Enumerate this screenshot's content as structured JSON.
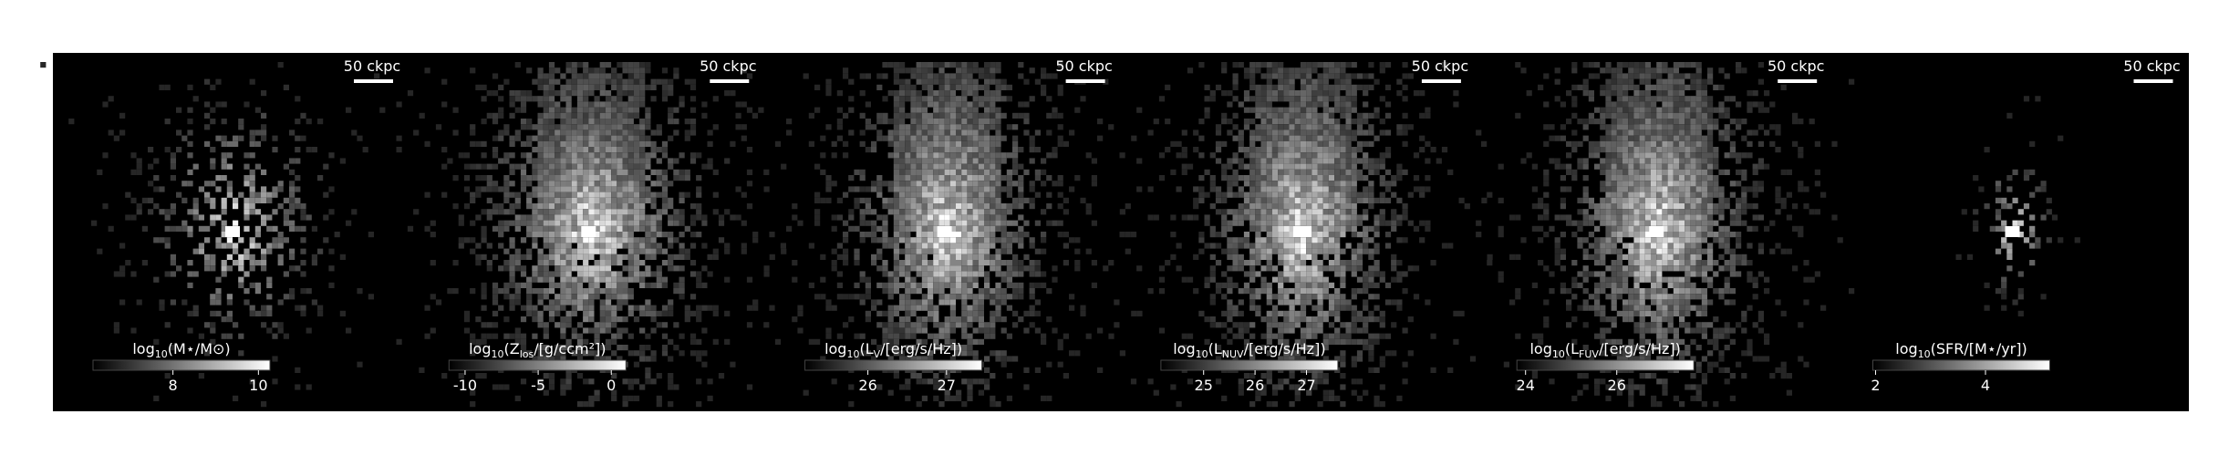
{
  "panels": [
    {
      "scale_bar": "50 ckpc",
      "label": [
        "log",
        "10",
        "(M⋆/M⊙)"
      ],
      "clim": [
        6.13,
        10.27
      ],
      "ticks": [
        8,
        10
      ]
    },
    {
      "scale_bar": "50 ckpc",
      "label": [
        "log",
        "10",
        "(Z",
        "los",
        "/[g/ccm²])"
      ],
      "clim": [
        -11.1,
        1.0
      ],
      "ticks": [
        -10,
        -5,
        0
      ]
    },
    {
      "scale_bar": "50 ckpc",
      "label": [
        "log",
        "10",
        "(L",
        "V",
        "/[erg/s/Hz])"
      ],
      "clim": [
        25.2,
        27.45
      ],
      "ticks": [
        26,
        27
      ]
    },
    {
      "scale_bar": "50 ckpc",
      "label": [
        "log",
        "10",
        "(L",
        "NUV",
        "/[erg/s/Hz])"
      ],
      "clim": [
        24.17,
        27.61
      ],
      "ticks": [
        25,
        26,
        27
      ]
    },
    {
      "scale_bar": "50 ckpc",
      "label": [
        "log",
        "10",
        "(L",
        "FUV",
        "/[erg/s/Hz])"
      ],
      "clim": [
        23.81,
        27.69
      ],
      "ticks": [
        24,
        26
      ]
    },
    {
      "scale_bar": "50 ckpc",
      "label": [
        "log",
        "10",
        "(SFR/[M⋆/yr])"
      ],
      "clim": [
        1.95,
        5.17
      ],
      "ticks": [
        2,
        4
      ]
    }
  ]
}
